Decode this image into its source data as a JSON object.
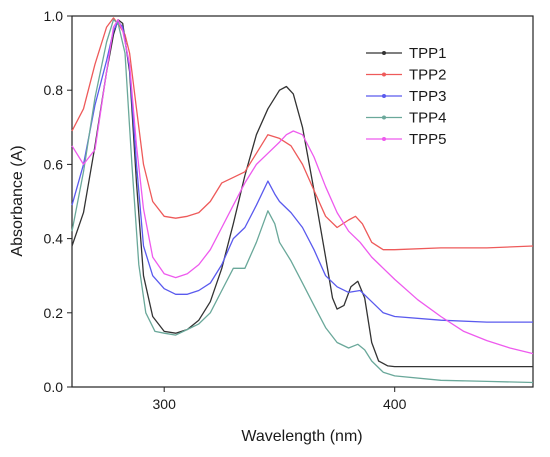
{
  "chart_data": {
    "type": "line",
    "title": "",
    "xlabel": "Wavelength (nm)",
    "ylabel": "Absorbance (A)",
    "xlim": [
      260,
      460
    ],
    "ylim": [
      0.0,
      1.0
    ],
    "xticks": [
      300,
      400
    ],
    "xtick_labels": [
      "300",
      "400"
    ],
    "yticks": [
      0.0,
      0.2,
      0.4,
      0.6,
      0.8,
      1.0
    ],
    "ytick_labels": [
      "0.0",
      "0.2",
      "0.4",
      "0.6",
      "0.8",
      "1.0"
    ],
    "grid": false,
    "legend_position": "top-right",
    "series": [
      {
        "name": "TPP1",
        "color": "#333333",
        "points": [
          [
            260,
            0.38
          ],
          [
            265,
            0.47
          ],
          [
            270,
            0.65
          ],
          [
            275,
            0.85
          ],
          [
            278,
            0.95
          ],
          [
            280,
            0.99
          ],
          [
            282,
            0.98
          ],
          [
            285,
            0.85
          ],
          [
            288,
            0.55
          ],
          [
            291,
            0.3
          ],
          [
            295,
            0.19
          ],
          [
            300,
            0.15
          ],
          [
            305,
            0.145
          ],
          [
            310,
            0.155
          ],
          [
            315,
            0.18
          ],
          [
            320,
            0.23
          ],
          [
            325,
            0.32
          ],
          [
            330,
            0.44
          ],
          [
            335,
            0.57
          ],
          [
            340,
            0.68
          ],
          [
            345,
            0.75
          ],
          [
            350,
            0.8
          ],
          [
            353,
            0.81
          ],
          [
            356,
            0.79
          ],
          [
            360,
            0.7
          ],
          [
            365,
            0.53
          ],
          [
            370,
            0.35
          ],
          [
            373,
            0.24
          ],
          [
            375,
            0.21
          ],
          [
            378,
            0.22
          ],
          [
            381,
            0.27
          ],
          [
            384,
            0.285
          ],
          [
            387,
            0.24
          ],
          [
            390,
            0.12
          ],
          [
            393,
            0.07
          ],
          [
            397,
            0.057
          ],
          [
            400,
            0.055
          ],
          [
            420,
            0.055
          ],
          [
            440,
            0.055
          ],
          [
            460,
            0.055
          ]
        ]
      },
      {
        "name": "TPP2",
        "color": "#ee5a5a",
        "points": [
          [
            260,
            0.69
          ],
          [
            265,
            0.75
          ],
          [
            270,
            0.87
          ],
          [
            275,
            0.97
          ],
          [
            278,
            0.995
          ],
          [
            281,
            0.97
          ],
          [
            283,
            0.95
          ],
          [
            285,
            0.9
          ],
          [
            288,
            0.75
          ],
          [
            291,
            0.6
          ],
          [
            295,
            0.5
          ],
          [
            300,
            0.46
          ],
          [
            305,
            0.455
          ],
          [
            310,
            0.46
          ],
          [
            315,
            0.47
          ],
          [
            320,
            0.5
          ],
          [
            325,
            0.55
          ],
          [
            330,
            0.565
          ],
          [
            335,
            0.58
          ],
          [
            340,
            0.63
          ],
          [
            345,
            0.68
          ],
          [
            350,
            0.67
          ],
          [
            355,
            0.65
          ],
          [
            360,
            0.6
          ],
          [
            365,
            0.53
          ],
          [
            370,
            0.46
          ],
          [
            375,
            0.43
          ],
          [
            380,
            0.45
          ],
          [
            383,
            0.46
          ],
          [
            386,
            0.44
          ],
          [
            390,
            0.39
          ],
          [
            395,
            0.37
          ],
          [
            400,
            0.37
          ],
          [
            420,
            0.375
          ],
          [
            440,
            0.375
          ],
          [
            460,
            0.38
          ]
        ]
      },
      {
        "name": "TPP3",
        "color": "#5a5aee",
        "points": [
          [
            260,
            0.49
          ],
          [
            265,
            0.6
          ],
          [
            270,
            0.76
          ],
          [
            275,
            0.88
          ],
          [
            278,
            0.96
          ],
          [
            280,
            0.985
          ],
          [
            282,
            0.97
          ],
          [
            285,
            0.86
          ],
          [
            288,
            0.6
          ],
          [
            291,
            0.38
          ],
          [
            295,
            0.3
          ],
          [
            300,
            0.265
          ],
          [
            305,
            0.25
          ],
          [
            310,
            0.25
          ],
          [
            315,
            0.26
          ],
          [
            320,
            0.28
          ],
          [
            325,
            0.33
          ],
          [
            330,
            0.4
          ],
          [
            335,
            0.43
          ],
          [
            340,
            0.49
          ],
          [
            345,
            0.555
          ],
          [
            348,
            0.52
          ],
          [
            350,
            0.5
          ],
          [
            355,
            0.47
          ],
          [
            360,
            0.43
          ],
          [
            365,
            0.37
          ],
          [
            370,
            0.3
          ],
          [
            375,
            0.27
          ],
          [
            380,
            0.255
          ],
          [
            385,
            0.26
          ],
          [
            390,
            0.23
          ],
          [
            395,
            0.2
          ],
          [
            400,
            0.19
          ],
          [
            420,
            0.18
          ],
          [
            440,
            0.175
          ],
          [
            460,
            0.175
          ]
        ]
      },
      {
        "name": "TPP4",
        "color": "#6aa89a",
        "points": [
          [
            260,
            0.42
          ],
          [
            265,
            0.58
          ],
          [
            270,
            0.78
          ],
          [
            275,
            0.93
          ],
          [
            278,
            0.99
          ],
          [
            280,
            0.98
          ],
          [
            283,
            0.9
          ],
          [
            286,
            0.6
          ],
          [
            289,
            0.33
          ],
          [
            292,
            0.2
          ],
          [
            296,
            0.15
          ],
          [
            300,
            0.145
          ],
          [
            305,
            0.14
          ],
          [
            310,
            0.155
          ],
          [
            315,
            0.17
          ],
          [
            320,
            0.2
          ],
          [
            325,
            0.26
          ],
          [
            330,
            0.32
          ],
          [
            335,
            0.32
          ],
          [
            340,
            0.39
          ],
          [
            345,
            0.475
          ],
          [
            348,
            0.44
          ],
          [
            350,
            0.39
          ],
          [
            355,
            0.34
          ],
          [
            360,
            0.28
          ],
          [
            365,
            0.22
          ],
          [
            370,
            0.16
          ],
          [
            375,
            0.12
          ],
          [
            380,
            0.105
          ],
          [
            384,
            0.115
          ],
          [
            387,
            0.1
          ],
          [
            390,
            0.07
          ],
          [
            395,
            0.04
          ],
          [
            400,
            0.03
          ],
          [
            420,
            0.018
          ],
          [
            440,
            0.015
          ],
          [
            460,
            0.012
          ]
        ]
      },
      {
        "name": "TPP5",
        "color": "#ee5aee",
        "points": [
          [
            260,
            0.65
          ],
          [
            265,
            0.6
          ],
          [
            270,
            0.64
          ],
          [
            275,
            0.85
          ],
          [
            278,
            0.97
          ],
          [
            280,
            0.99
          ],
          [
            282,
            0.96
          ],
          [
            285,
            0.87
          ],
          [
            288,
            0.65
          ],
          [
            291,
            0.48
          ],
          [
            295,
            0.35
          ],
          [
            300,
            0.305
          ],
          [
            305,
            0.295
          ],
          [
            310,
            0.305
          ],
          [
            315,
            0.33
          ],
          [
            320,
            0.37
          ],
          [
            325,
            0.43
          ],
          [
            330,
            0.49
          ],
          [
            335,
            0.55
          ],
          [
            340,
            0.6
          ],
          [
            345,
            0.63
          ],
          [
            350,
            0.66
          ],
          [
            353,
            0.68
          ],
          [
            356,
            0.69
          ],
          [
            360,
            0.68
          ],
          [
            365,
            0.62
          ],
          [
            370,
            0.54
          ],
          [
            375,
            0.47
          ],
          [
            380,
            0.42
          ],
          [
            385,
            0.39
          ],
          [
            390,
            0.35
          ],
          [
            400,
            0.29
          ],
          [
            410,
            0.235
          ],
          [
            420,
            0.19
          ],
          [
            430,
            0.15
          ],
          [
            440,
            0.125
          ],
          [
            450,
            0.105
          ],
          [
            460,
            0.09
          ]
        ]
      }
    ]
  }
}
